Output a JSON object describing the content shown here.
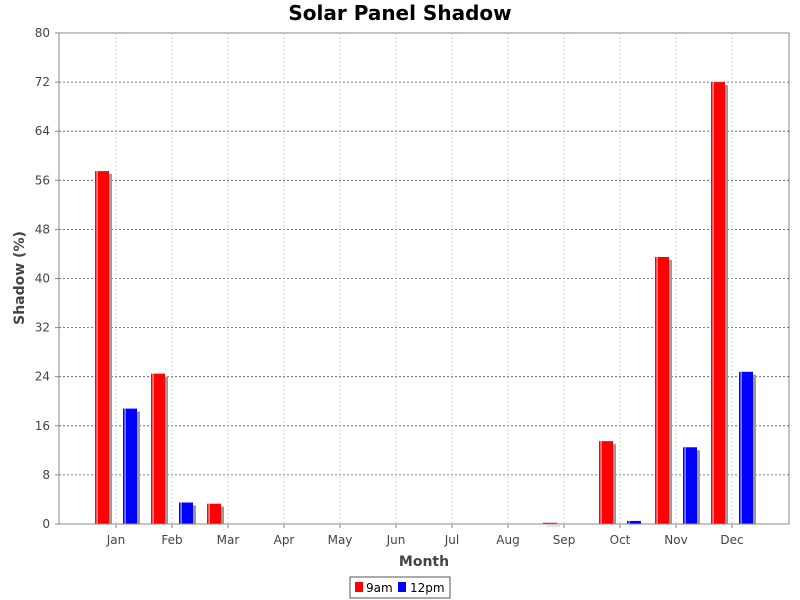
{
  "chart_data": {
    "type": "bar",
    "title": "Solar Panel Shadow",
    "xlabel": "Month",
    "ylabel": "Shadow (%)",
    "ylim": [
      0,
      80
    ],
    "yticks": [
      "0",
      "8",
      "16",
      "24",
      "32",
      "40",
      "48",
      "56",
      "64",
      "72",
      "80"
    ],
    "grid": true,
    "legend_position": "bottom",
    "categories": [
      "Jan",
      "Feb",
      "Mar",
      "Apr",
      "May",
      "Jun",
      "Jul",
      "Aug",
      "Sep",
      "Oct",
      "Nov",
      "Dec"
    ],
    "series": [
      {
        "name": "9am",
        "color": "#ff0000",
        "values": [
          57.5,
          24.5,
          3.3,
          0,
          0,
          0,
          0,
          0,
          0.2,
          13.5,
          43.5,
          72
        ]
      },
      {
        "name": "12pm",
        "color": "#0000ff",
        "values": [
          18.8,
          3.5,
          null,
          0,
          0,
          0,
          0,
          0,
          0,
          0.5,
          12.5,
          24.8
        ]
      }
    ]
  }
}
